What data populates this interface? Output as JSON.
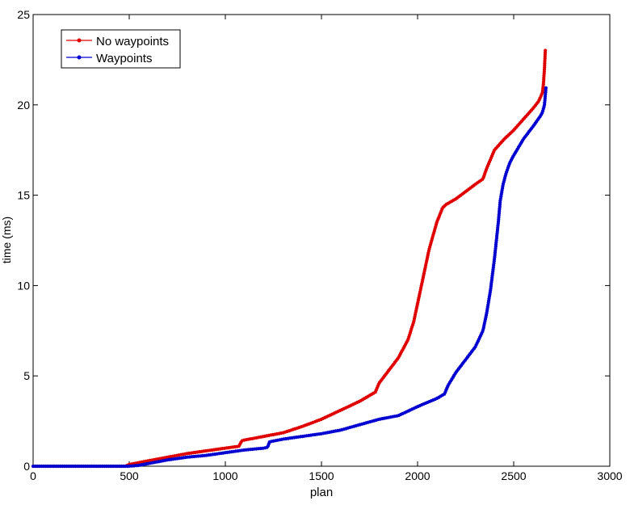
{
  "chart_data": {
    "type": "line",
    "title": "",
    "xlabel": "plan",
    "ylabel": "time (ms)",
    "xlim": [
      0,
      3000
    ],
    "ylim": [
      0,
      25
    ],
    "xticks": [
      0,
      500,
      1000,
      1500,
      2000,
      2500,
      3000
    ],
    "yticks": [
      0,
      5,
      10,
      15,
      20,
      25
    ],
    "grid": false,
    "legend_position": "top-left",
    "series": [
      {
        "name": "No waypoints",
        "color": "#e00000",
        "x": [
          0,
          480,
          500,
          550,
          600,
          700,
          800,
          900,
          1000,
          1070,
          1085,
          1100,
          1200,
          1300,
          1400,
          1500,
          1600,
          1700,
          1780,
          1800,
          1850,
          1900,
          1950,
          1980,
          2000,
          2030,
          2060,
          2100,
          2130,
          2150,
          2200,
          2250,
          2300,
          2340,
          2360,
          2400,
          2450,
          2500,
          2550,
          2600,
          2630,
          2650,
          2655,
          2660,
          2665
        ],
        "y": [
          0,
          0,
          0.1,
          0.2,
          0.3,
          0.5,
          0.7,
          0.85,
          1.0,
          1.1,
          1.4,
          1.45,
          1.65,
          1.85,
          2.2,
          2.6,
          3.1,
          3.6,
          4.1,
          4.6,
          5.3,
          6.0,
          7.0,
          8.0,
          9.0,
          10.5,
          12.0,
          13.5,
          14.3,
          14.5,
          14.8,
          15.2,
          15.6,
          15.9,
          16.5,
          17.5,
          18.1,
          18.6,
          19.2,
          19.8,
          20.2,
          20.7,
          21.2,
          22.0,
          23.1
        ]
      },
      {
        "name": "Waypoints",
        "color": "#0000d0",
        "x": [
          0,
          490,
          520,
          550,
          600,
          700,
          800,
          900,
          1000,
          1100,
          1200,
          1220,
          1230,
          1300,
          1400,
          1500,
          1600,
          1700,
          1800,
          1900,
          2000,
          2100,
          2140,
          2160,
          2200,
          2250,
          2300,
          2340,
          2360,
          2380,
          2400,
          2420,
          2430,
          2445,
          2460,
          2480,
          2500,
          2550,
          2600,
          2640,
          2650,
          2660,
          2665,
          2668
        ],
        "y": [
          0,
          0,
          0.02,
          0.05,
          0.15,
          0.35,
          0.5,
          0.6,
          0.75,
          0.9,
          1.0,
          1.05,
          1.35,
          1.5,
          1.65,
          1.8,
          2.0,
          2.3,
          2.6,
          2.8,
          3.3,
          3.75,
          4.0,
          4.5,
          5.2,
          5.9,
          6.6,
          7.5,
          8.5,
          9.8,
          11.5,
          13.5,
          14.7,
          15.6,
          16.2,
          16.8,
          17.2,
          18.1,
          18.8,
          19.4,
          19.6,
          20.0,
          20.6,
          21.0
        ]
      }
    ]
  }
}
